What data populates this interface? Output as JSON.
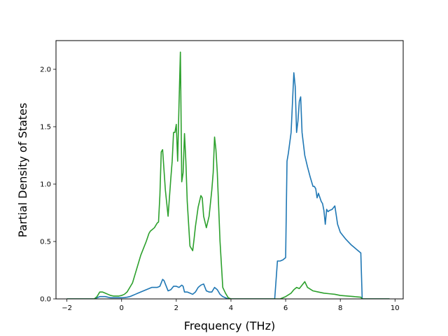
{
  "chart_data": {
    "type": "line",
    "xlabel": "Frequency (THz)",
    "ylabel": "Partial Density of States",
    "xlim": [
      -2.4,
      10.3
    ],
    "ylim": [
      0,
      2.25
    ],
    "xticks": [
      -2,
      0,
      2,
      4,
      6,
      8,
      10
    ],
    "yticks": [
      0.0,
      0.5,
      1.0,
      1.5,
      2.0
    ],
    "xtick_labels": [
      "−2",
      "0",
      "2",
      "4",
      "6",
      "8",
      "10"
    ],
    "ytick_labels": [
      "0.0",
      "0.5",
      "1.0",
      "1.5",
      "2.0"
    ],
    "grid": false,
    "series": [
      {
        "color": "#1f77b4",
        "x": [
          -2.0,
          -1.0,
          -0.9,
          -0.8,
          -0.7,
          -0.6,
          -0.5,
          -0.4,
          -0.3,
          -0.2,
          -0.1,
          0.0,
          0.1,
          0.2,
          0.3,
          0.4,
          0.5,
          0.6,
          0.7,
          0.8,
          0.9,
          1.0,
          1.1,
          1.2,
          1.3,
          1.4,
          1.45,
          1.5,
          1.55,
          1.6,
          1.7,
          1.8,
          1.9,
          2.0,
          2.1,
          2.2,
          2.25,
          2.3,
          2.4,
          2.5,
          2.6,
          2.7,
          2.8,
          2.9,
          3.0,
          3.1,
          3.2,
          3.3,
          3.4,
          3.5,
          3.6,
          3.7,
          3.8,
          3.9,
          4.0,
          4.2,
          5.0,
          5.6,
          5.7,
          5.8,
          5.9,
          6.0,
          6.05,
          6.1,
          6.2,
          6.3,
          6.35,
          6.4,
          6.45,
          6.5,
          6.55,
          6.6,
          6.65,
          6.7,
          6.8,
          6.9,
          7.0,
          7.05,
          7.1,
          7.15,
          7.2,
          7.3,
          7.35,
          7.4,
          7.45,
          7.5,
          7.55,
          7.6,
          7.7,
          7.8,
          7.9,
          8.0,
          8.2,
          8.4,
          8.6,
          8.75,
          8.8,
          9.0,
          9.8
        ],
        "y": [
          0,
          0,
          0.01,
          0.02,
          0.02,
          0.02,
          0.015,
          0.01,
          0.01,
          0.01,
          0.01,
          0.01,
          0.012,
          0.015,
          0.02,
          0.03,
          0.04,
          0.05,
          0.06,
          0.07,
          0.08,
          0.09,
          0.1,
          0.1,
          0.1,
          0.11,
          0.14,
          0.17,
          0.16,
          0.13,
          0.07,
          0.08,
          0.11,
          0.11,
          0.1,
          0.12,
          0.11,
          0.06,
          0.06,
          0.05,
          0.04,
          0.06,
          0.1,
          0.12,
          0.13,
          0.07,
          0.06,
          0.06,
          0.1,
          0.08,
          0.04,
          0.02,
          0.01,
          0.0,
          0,
          0,
          0,
          0,
          0.33,
          0.33,
          0.34,
          0.36,
          1.2,
          1.27,
          1.45,
          1.97,
          1.85,
          1.45,
          1.55,
          1.72,
          1.76,
          1.45,
          1.35,
          1.25,
          1.15,
          1.06,
          0.98,
          0.98,
          0.96,
          0.88,
          0.92,
          0.85,
          0.83,
          0.77,
          0.65,
          0.78,
          0.76,
          0.77,
          0.78,
          0.81,
          0.65,
          0.58,
          0.52,
          0.47,
          0.43,
          0.4,
          0,
          0,
          0
        ]
      },
      {
        "color": "#2ca02c",
        "x": [
          -2.0,
          -1.0,
          -0.9,
          -0.8,
          -0.7,
          -0.6,
          -0.5,
          -0.4,
          -0.3,
          -0.2,
          -0.1,
          0.0,
          0.1,
          0.2,
          0.3,
          0.4,
          0.5,
          0.6,
          0.7,
          0.8,
          0.9,
          1.0,
          1.05,
          1.1,
          1.2,
          1.3,
          1.35,
          1.4,
          1.45,
          1.5,
          1.6,
          1.7,
          1.8,
          1.85,
          1.9,
          1.95,
          2.0,
          2.05,
          2.1,
          2.15,
          2.2,
          2.25,
          2.3,
          2.35,
          2.4,
          2.5,
          2.6,
          2.65,
          2.7,
          2.8,
          2.9,
          2.95,
          3.0,
          3.1,
          3.2,
          3.3,
          3.35,
          3.4,
          3.45,
          3.5,
          3.55,
          3.6,
          3.7,
          3.8,
          3.9,
          4.0,
          4.2,
          5.0,
          5.8,
          6.0,
          6.2,
          6.3,
          6.4,
          6.5,
          6.6,
          6.7,
          6.8,
          7.0,
          7.2,
          7.4,
          7.6,
          7.8,
          8.0,
          8.5,
          8.75,
          8.8,
          9.8
        ],
        "y": [
          0,
          0,
          0.02,
          0.06,
          0.06,
          0.05,
          0.04,
          0.03,
          0.025,
          0.025,
          0.025,
          0.03,
          0.04,
          0.06,
          0.1,
          0.14,
          0.22,
          0.3,
          0.38,
          0.44,
          0.5,
          0.57,
          0.59,
          0.6,
          0.62,
          0.66,
          0.67,
          0.9,
          1.28,
          1.3,
          0.95,
          0.72,
          1.05,
          1.2,
          1.45,
          1.45,
          1.52,
          1.2,
          1.7,
          2.15,
          1.02,
          1.1,
          1.44,
          1.2,
          0.85,
          0.46,
          0.42,
          0.52,
          0.63,
          0.8,
          0.9,
          0.88,
          0.72,
          0.62,
          0.72,
          0.95,
          1.1,
          1.41,
          1.3,
          1.1,
          0.8,
          0.5,
          0.1,
          0.05,
          0.01,
          0,
          0,
          0,
          0,
          0.02,
          0.05,
          0.08,
          0.1,
          0.09,
          0.12,
          0.15,
          0.1,
          0.07,
          0.06,
          0.05,
          0.045,
          0.04,
          0.03,
          0.02,
          0.015,
          0,
          0
        ]
      }
    ]
  }
}
